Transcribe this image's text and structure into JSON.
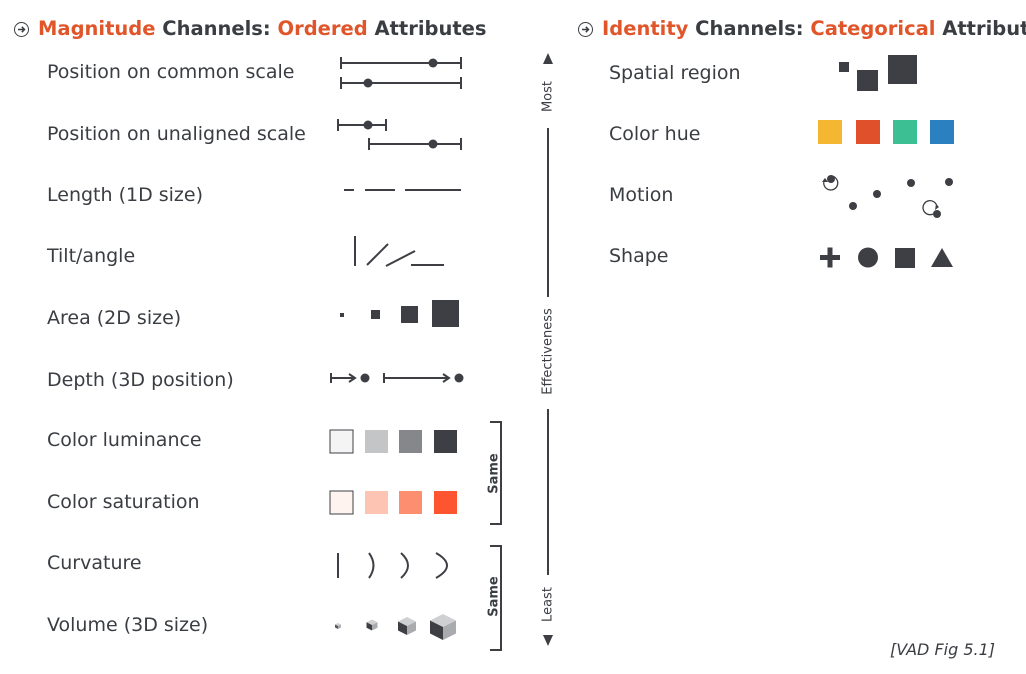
{
  "magnitude": {
    "title_a": "Magnitude",
    "title_b": " Channels: ",
    "title_c": "Ordered",
    "title_d": " Attributes",
    "channels": [
      "Position on common scale",
      "Position on unaligned scale",
      "Length (1D size)",
      "Tilt/angle",
      "Area (2D size)",
      "Depth (3D position)",
      "Color luminance",
      "Color saturation",
      "Curvature",
      "Volume (3D size)"
    ]
  },
  "identity": {
    "title_a": "Identity",
    "title_b": " Channels: ",
    "title_c": "Categorical",
    "title_d": " Attributes",
    "channels": [
      "Spatial region",
      "Color hue",
      "Motion",
      "Shape"
    ],
    "hue_colors": [
      "#f5b731",
      "#e0502a",
      "#3bbf93",
      "#2b80c0"
    ]
  },
  "axis": {
    "top": "Most",
    "middle": "Effectiveness",
    "bottom": "Least",
    "bracket_label_1": "Same",
    "bracket_label_2": "Same"
  },
  "colors": {
    "accent": "#e0562a",
    "ink": "#3a3d42",
    "luminance": [
      "#f4f4f4",
      "#c4c5c7",
      "#86878b",
      "#3d3f44"
    ],
    "saturation": [
      "#fff3ef",
      "#fec4b3",
      "#fd8e6f",
      "#fd5530"
    ]
  },
  "reference": "[VAD Fig 5.1]"
}
